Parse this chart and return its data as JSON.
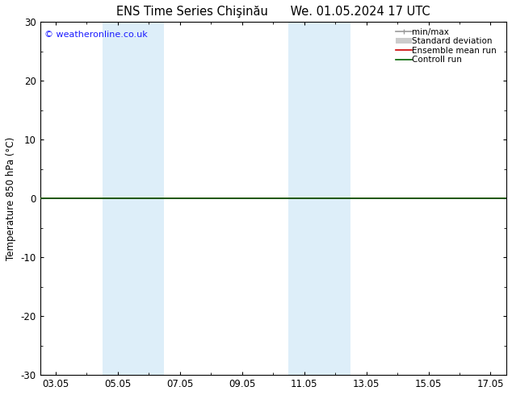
{
  "title": "ENS Time Series Chişinău",
  "title2": "We. 01.05.2024 17 UTC",
  "ylabel": "Temperature 850 hPa (°C)",
  "ylim": [
    -30,
    30
  ],
  "yticks": [
    -30,
    -20,
    -10,
    0,
    10,
    20,
    30
  ],
  "xtick_labels": [
    "03.05",
    "05.05",
    "07.05",
    "09.05",
    "11.05",
    "13.05",
    "15.05",
    "17.05"
  ],
  "xtick_positions": [
    0,
    2,
    4,
    6,
    8,
    10,
    12,
    14
  ],
  "xlim": [
    -0.5,
    14.5
  ],
  "background_color": "#ffffff",
  "plot_bg_color": "#ffffff",
  "shaded_bands": [
    {
      "x_start": 1.5,
      "x_end": 3.5,
      "color": "#ddeef9"
    },
    {
      "x_start": 7.5,
      "x_end": 9.5,
      "color": "#ddeef9"
    }
  ],
  "flat_line_color_green": "#006400",
  "flat_line_color_red": "#cc0000",
  "watermark": "© weatheronline.co.uk",
  "watermark_color": "#1a1aff",
  "legend_gray_line": "#999999",
  "legend_gray_box": "#cccccc",
  "legend_red": "#cc0000",
  "legend_green": "#006400",
  "title_fontsize": 10.5,
  "axis_fontsize": 8.5,
  "ylabel_fontsize": 8.5,
  "legend_fontsize": 7.5,
  "watermark_fontsize": 8.0
}
